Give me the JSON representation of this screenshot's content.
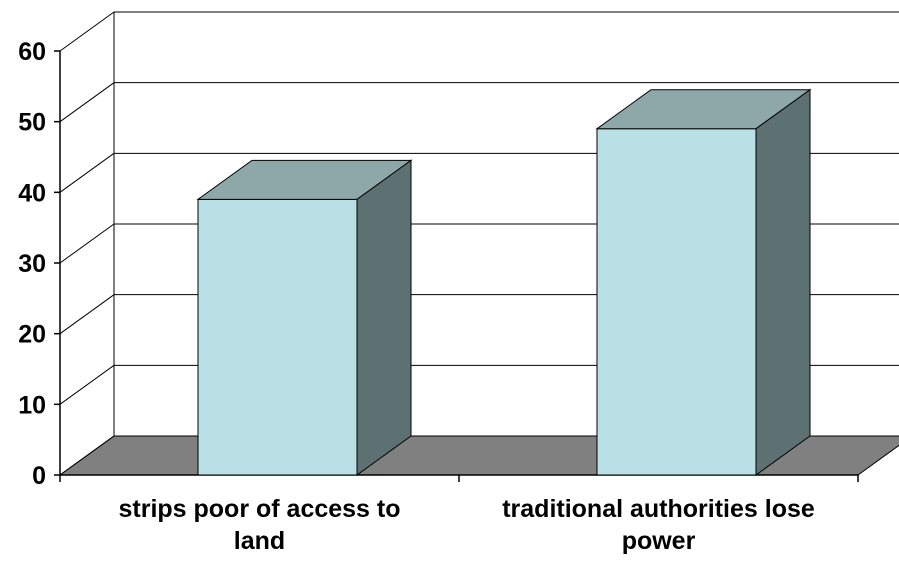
{
  "chart_data": {
    "type": "bar",
    "style": "3d",
    "categories": [
      "strips poor of access to land",
      "traditional authorities lose power"
    ],
    "category_label_lines": [
      [
        "strips poor of access to",
        "land"
      ],
      [
        "traditional authorities lose",
        "power"
      ]
    ],
    "values": [
      39,
      49
    ],
    "ylim": [
      0,
      60
    ],
    "yticks": [
      "0",
      "10",
      "20",
      "30",
      "40",
      "50",
      "60"
    ],
    "grid": true,
    "legend": "none",
    "title": "",
    "xlabel": "",
    "ylabel": "",
    "colors": {
      "bar_front": "#b9e0e5",
      "bar_top": "#8ea8aa",
      "bar_side": "#5d7173",
      "floor": "#808080",
      "grid": "#000000"
    }
  }
}
